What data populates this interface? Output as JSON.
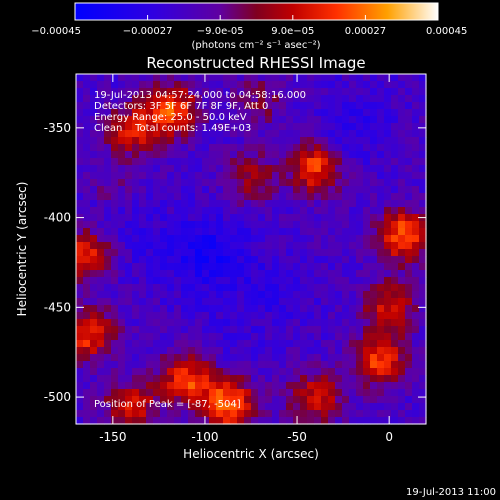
{
  "chart_data": {
    "type": "heatmap",
    "title": "Reconstructed RHESSI Image",
    "xlabel": "Heliocentric X (arcsec)",
    "ylabel": "Heliocentric Y (arcsec)",
    "xlim": [
      -170,
      20
    ],
    "ylim": [
      -515,
      -320
    ],
    "x_ticks": [
      -150,
      -100,
      -50,
      0
    ],
    "y_ticks": [
      -350,
      -400,
      -450,
      -500
    ],
    "colorbar": {
      "label": "(photons cm⁻² s⁻¹ asec⁻²)",
      "range": [
        -0.00045,
        0.00045
      ],
      "ticks": [
        "-0.00045",
        "-0.00027",
        "-9.0e-05",
        "9.0e-05",
        "0.00027",
        "0.00045"
      ],
      "colors": [
        "#0000ff",
        "#8000c0",
        "#a00000",
        "#ff4000",
        "#ffb000",
        "#ffffff"
      ]
    },
    "annotations": [
      "19-Jul-2013 04:57:24.000 to 04:58:16.000",
      "Detectors: 3F 5F 6F 7F 8F 9F, Att 0",
      "Energy Range: 25.0 - 50.0 keV",
      "Clean    Total counts: 1.49E+03"
    ],
    "peak_label": "Position of Peak = [-87, -504]",
    "footer_date": "19-Jul-2013 11:00",
    "intensity_features": [
      {
        "x": -118,
        "y": -340,
        "value": 0.00042
      },
      {
        "x": -140,
        "y": -352,
        "value": 0.0003
      },
      {
        "x": -40,
        "y": -372,
        "value": 0.00038
      },
      {
        "x": -75,
        "y": -378,
        "value": 0.00022
      },
      {
        "x": 8,
        "y": -410,
        "value": 0.00042
      },
      {
        "x": 0,
        "y": -450,
        "value": 0.0003
      },
      {
        "x": -165,
        "y": -420,
        "value": 0.00034
      },
      {
        "x": -163,
        "y": -465,
        "value": 0.00036
      },
      {
        "x": -87,
        "y": -504,
        "value": 0.00045
      },
      {
        "x": -110,
        "y": -490,
        "value": 0.00038
      },
      {
        "x": -140,
        "y": -505,
        "value": 0.0003
      },
      {
        "x": -5,
        "y": -480,
        "value": 0.00038
      },
      {
        "x": -40,
        "y": -500,
        "value": 0.0003
      },
      {
        "x": -150,
        "y": -385,
        "value": 0.00012
      },
      {
        "x": -70,
        "y": -335,
        "value": 0.00015
      },
      {
        "x": -95,
        "y": -420,
        "value": -0.00045
      },
      {
        "x": -150,
        "y": -400,
        "value": -0.0003
      },
      {
        "x": -20,
        "y": -350,
        "value": -0.00033
      },
      {
        "x": -60,
        "y": -440,
        "value": -0.0003
      },
      {
        "x": -120,
        "y": -420,
        "value": -0.00028
      },
      {
        "x": -90,
        "y": -465,
        "value": -0.00025
      }
    ]
  }
}
